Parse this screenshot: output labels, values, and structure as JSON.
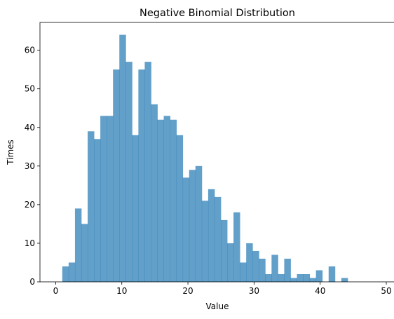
{
  "chart_data": {
    "type": "bar",
    "title": "Negative Binomial Distribution",
    "xlabel": "Value",
    "ylabel": "Times",
    "xlim": [
      -2.375,
      51.375
    ],
    "ylim": [
      0,
      67.2
    ],
    "xticks": [
      0,
      10,
      20,
      30,
      40,
      50
    ],
    "yticks": [
      0,
      10,
      20,
      30,
      40,
      50,
      60
    ],
    "bin_width": 0.959,
    "bin_start": 1,
    "values": [
      4,
      5,
      19,
      15,
      39,
      37,
      43,
      43,
      55,
      64,
      57,
      38,
      55,
      57,
      46,
      42,
      43,
      42,
      38,
      27,
      29,
      30,
      21,
      24,
      22,
      16,
      10,
      18,
      5,
      10,
      8,
      6,
      2,
      7,
      2,
      6,
      1,
      2,
      2,
      1,
      3,
      0,
      4,
      0,
      1
    ],
    "color": "#1f77b4",
    "opacity": 0.7,
    "grid": false
  }
}
